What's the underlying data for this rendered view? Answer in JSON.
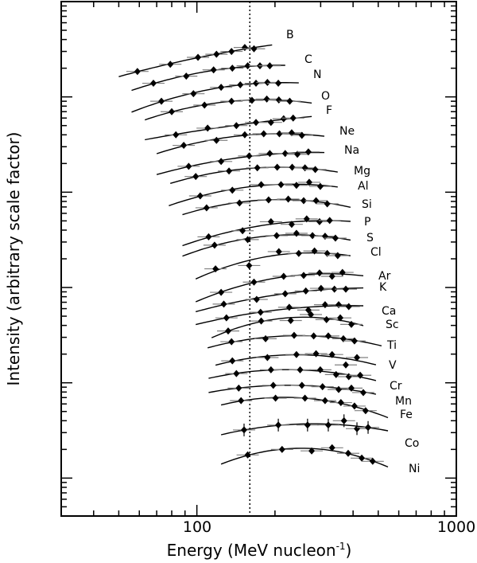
{
  "chart_data": {
    "type": "scatter",
    "title": "",
    "xlabel": "Energy (MeV nucleon",
    "xlabel_superscript": "-1",
    "xlabel_close": ")",
    "ylabel": "Intensity (arbitrary scale factor)",
    "x_scale": "log",
    "y_scale": "log",
    "xlim": [
      30,
      1000
    ],
    "ylim": [
      0.4,
      100000
    ],
    "x_tick_labels": [
      "100",
      "1000"
    ],
    "y_tick_labels": [],
    "grid": false,
    "reference_line": {
      "style": "dotted",
      "x": 160
    },
    "fit": "smooth curve through each series",
    "colors": {
      "points": "#000000",
      "error_bars": "#808080",
      "curves": "#000000"
    },
    "series": [
      {
        "name": "B",
        "x": [
          59,
          79,
          101,
          119,
          136,
          153,
          166
        ],
        "y": [
          18500,
          22000,
          26000,
          28000,
          30000,
          33000,
          32000
        ],
        "fit_range": [
          50,
          195
        ]
      },
      {
        "name": "C",
        "x": [
          68,
          91,
          116,
          137,
          157,
          175,
          191
        ],
        "y": [
          13900,
          16500,
          19200,
          20000,
          21200,
          21200,
          21200
        ],
        "fit_range": [
          56,
          219
        ]
      },
      {
        "name": "N",
        "x": [
          73,
          97,
          124,
          147,
          169,
          187,
          206
        ],
        "y": [
          9000,
          10800,
          12600,
          13400,
          13900,
          14200,
          13900
        ],
        "fit_range": [
          56,
          247
        ]
      },
      {
        "name": "O",
        "x": [
          80,
          107,
          136,
          163,
          186,
          207,
          228
        ],
        "y": [
          7000,
          8200,
          9000,
          9200,
          9500,
          9300,
          9000
        ],
        "fit_range": [
          63,
          277
        ]
      },
      {
        "name": "F",
        "x": [
          83,
          110,
          142,
          169,
          193,
          216,
          235
        ],
        "y": [
          4000,
          4700,
          5000,
          5400,
          5400,
          5900,
          6000
        ],
        "fit_range": [
          63,
          277
        ]
      },
      {
        "name": "Ne",
        "x": [
          89,
          119,
          153,
          181,
          208,
          232,
          254
        ],
        "y": [
          3100,
          3500,
          4000,
          4100,
          4100,
          4200,
          3950
        ],
        "fit_range": [
          70,
          310
        ]
      },
      {
        "name": "Na",
        "x": [
          93,
          124,
          159,
          191,
          219,
          244,
          269
        ],
        "y": [
          1870,
          2100,
          2400,
          2550,
          2550,
          2500,
          2650
        ],
        "fit_range": [
          70,
          310
        ]
      },
      {
        "name": "Mg",
        "x": [
          99,
          133,
          171,
          204,
          233,
          261,
          286
        ],
        "y": [
          1460,
          1670,
          1800,
          1830,
          1830,
          1800,
          1730
        ],
        "fit_range": [
          79,
          349
        ]
      },
      {
        "name": "Al",
        "x": [
          103,
          137,
          177,
          211,
          242,
          271,
          299
        ],
        "y": [
          915,
          1050,
          1200,
          1200,
          1180,
          1270,
          1150
        ],
        "fit_range": [
          78,
          349
        ]
      },
      {
        "name": "Si",
        "x": [
          109,
          146,
          189,
          225,
          258,
          288,
          318
        ],
        "y": [
          686,
          770,
          830,
          847,
          815,
          815,
          755
        ],
        "fit_range": [
          88,
          391
        ]
      },
      {
        "name": "P",
        "x": [
          111,
          150,
          193,
          232,
          265,
          297,
          325
        ],
        "y": [
          340,
          394,
          490,
          460,
          525,
          490,
          505
        ],
        "fit_range": [
          88,
          391
        ]
      },
      {
        "name": "S",
        "x": [
          117,
          157,
          203,
          242,
          279,
          312,
          342
        ],
        "y": [
          278,
          318,
          350,
          370,
          350,
          345,
          330
        ],
        "fit_range": [
          88,
          391
        ]
      },
      {
        "name": "Cl",
        "x": [
          118,
          159,
          207,
          247,
          284,
          318,
          349
        ],
        "y": [
          157,
          170,
          238,
          228,
          242,
          228,
          216
        ],
        "fit_range": [
          99,
          391
        ]
      },
      {
        "name": "Ar",
        "x": [
          124,
          166,
          216,
          258,
          297,
          332,
          364
        ],
        "y": [
          89,
          114,
          131,
          134,
          142,
          131,
          144
        ],
        "fit_range": [
          99,
          438
        ]
      },
      {
        "name": "K",
        "x": [
          127,
          170,
          219,
          263,
          301,
          339,
          375
        ],
        "y": [
          67,
          75,
          86,
          92,
          98,
          96,
          96
        ],
        "fit_range": [
          99,
          438
        ]
      },
      {
        "name": "Ca",
        "x": [
          130,
          176,
          227,
          269,
          312,
          352,
          385
        ],
        "y": [
          48,
          55,
          62,
          58,
          66,
          66,
          63
        ],
        "fit_range": [
          99,
          438
        ]
      },
      {
        "name": "Sc",
        "x": [
          132,
          177,
          230,
          275,
          316,
          357,
          394
        ],
        "y": [
          35,
          44.5,
          45,
          52,
          46,
          48,
          41
        ],
        "fit_range": [
          114,
          438
        ]
      },
      {
        "name": "Ti",
        "x": [
          136,
          184,
          237,
          282,
          321,
          367,
          405
        ],
        "y": [
          27,
          29,
          31.5,
          31,
          31,
          29,
          27.5
        ],
        "fit_range": [
          110,
          515
        ]
      },
      {
        "name": "V",
        "x": [
          137,
          187,
          242,
          288,
          332,
          375,
          414
        ],
        "y": [
          17,
          18.4,
          19.8,
          20.2,
          19.8,
          15.4,
          18.4
        ],
        "fit_range": [
          118,
          490
        ]
      },
      {
        "name": "Cr",
        "x": [
          142,
          193,
          250,
          299,
          344,
          385,
          426
        ],
        "y": [
          12.5,
          13.7,
          13.7,
          13.7,
          12.2,
          11.6,
          12
        ],
        "fit_range": [
          111,
          490
        ]
      },
      {
        "name": "Mn",
        "x": [
          145,
          197,
          254,
          305,
          352,
          394,
          438
        ],
        "y": [
          8.8,
          9.4,
          9.4,
          9.1,
          8.5,
          8.8,
          7.9
        ],
        "fit_range": [
          111,
          490
        ]
      },
      {
        "name": "Fe",
        "x": [
          148,
          201,
          261,
          312,
          359,
          405,
          447
        ],
        "y": [
          6.5,
          6.9,
          6.9,
          6.5,
          6.2,
          5.7,
          5.1
        ],
        "fit_range": [
          124,
          545
        ]
      },
      {
        "name": "Co",
        "x": [
          152,
          206,
          267,
          321,
          369,
          414,
          457
        ],
        "y": [
          3.2,
          3.6,
          3.6,
          3.6,
          4.0,
          3.3,
          3.4
        ],
        "fit_range": [
          124,
          545
        ]
      },
      {
        "name": "Ni",
        "x": [
          157,
          213,
          277,
          332,
          383,
          432,
          476
        ],
        "y": [
          1.75,
          2.0,
          1.93,
          2.08,
          1.82,
          1.62,
          1.5
        ],
        "fit_range": [
          124,
          545
        ]
      }
    ]
  }
}
